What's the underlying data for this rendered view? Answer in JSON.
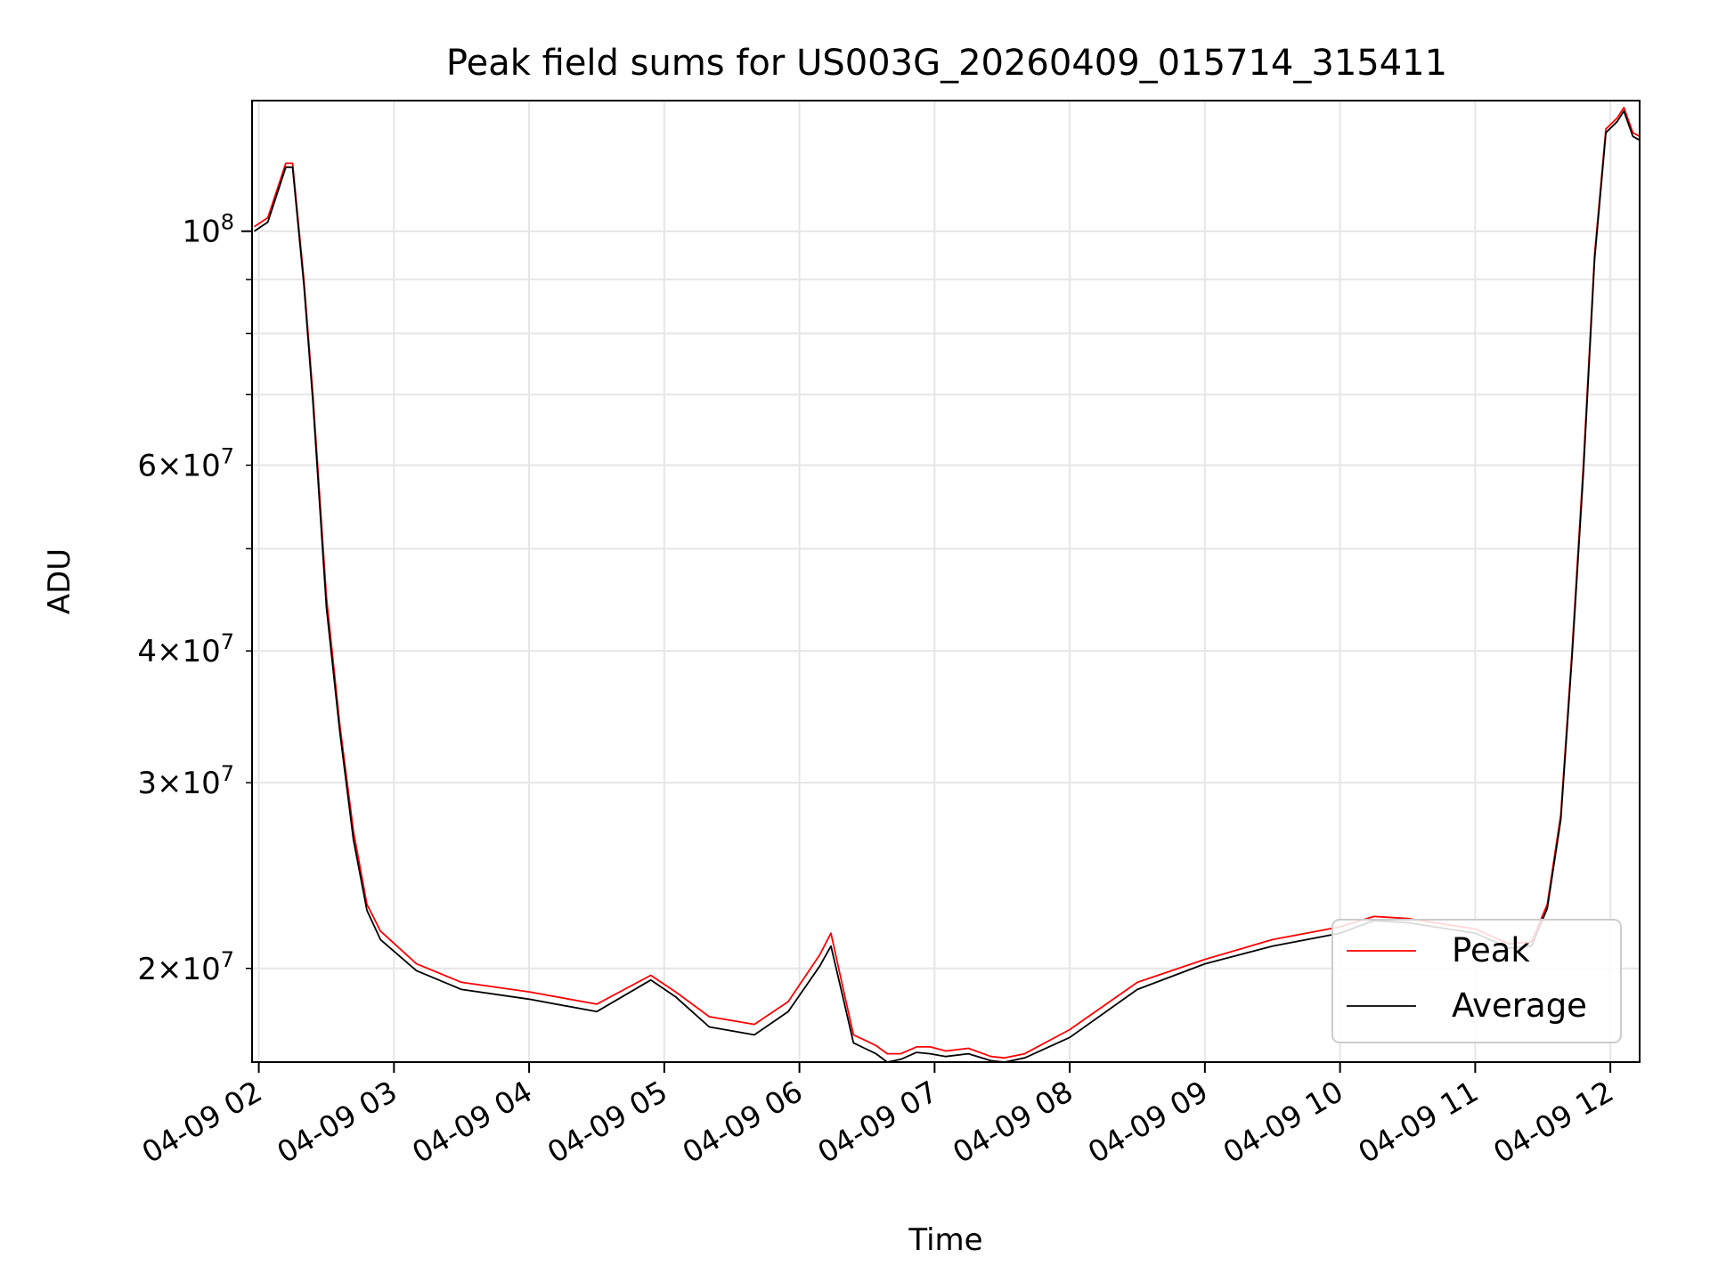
{
  "chart_data": {
    "type": "line",
    "title": "Peak field sums for US003G_20260409_015714_315411",
    "xlabel": "Time",
    "ylabel": "ADU",
    "x_tick_labels": [
      "04-09 02",
      "04-09 03",
      "04-09 04",
      "04-09 05",
      "04-09 06",
      "04-09 07",
      "04-09 08",
      "04-09 09",
      "04-09 10",
      "04-09 11",
      "04-09 12"
    ],
    "y_tick_labels": [
      {
        "value": 20000000,
        "mant": "2",
        "exp": "7"
      },
      {
        "value": 30000000,
        "mant": "3",
        "exp": "7"
      },
      {
        "value": 40000000,
        "mant": "4",
        "exp": "7"
      },
      {
        "value": 60000000,
        "mant": "6",
        "exp": "7"
      },
      {
        "value": 100000000,
        "mant": "",
        "exp": "8"
      }
    ],
    "y_scale": "log",
    "xlim": [
      "2026-04-09 01:57",
      "2026-04-09 12:13"
    ],
    "ylim": [
      16300000,
      133000000
    ],
    "grid": true,
    "legend_position": "lower right",
    "series": [
      {
        "name": "Peak",
        "color": "#ff0000",
        "x": [
          "2026-04-09 01:58",
          "2026-04-09 02:04",
          "2026-04-09 02:12",
          "2026-04-09 02:15",
          "2026-04-09 02:20",
          "2026-04-09 02:24",
          "2026-04-09 02:30",
          "2026-04-09 02:36",
          "2026-04-09 02:42",
          "2026-04-09 02:48",
          "2026-04-09 02:54",
          "2026-04-09 03:10",
          "2026-04-09 03:30",
          "2026-04-09 04:00",
          "2026-04-09 04:30",
          "2026-04-09 04:54",
          "2026-04-09 05:05",
          "2026-04-09 05:20",
          "2026-04-09 05:40",
          "2026-04-09 05:55",
          "2026-04-09 06:09",
          "2026-04-09 06:14",
          "2026-04-09 06:19",
          "2026-04-09 06:24",
          "2026-04-09 06:29",
          "2026-04-09 06:34",
          "2026-04-09 06:39",
          "2026-04-09 06:45",
          "2026-04-09 06:52",
          "2026-04-09 06:58",
          "2026-04-09 07:05",
          "2026-04-09 07:15",
          "2026-04-09 07:25",
          "2026-04-09 07:31",
          "2026-04-09 07:40",
          "2026-04-09 08:00",
          "2026-04-09 08:30",
          "2026-04-09 09:00",
          "2026-04-09 09:30",
          "2026-04-09 10:00",
          "2026-04-09 10:15",
          "2026-04-09 10:30",
          "2026-04-09 11:00",
          "2026-04-09 11:15",
          "2026-04-09 11:25",
          "2026-04-09 11:32",
          "2026-04-09 11:38",
          "2026-04-09 11:43",
          "2026-04-09 11:48",
          "2026-04-09 11:53",
          "2026-04-09 11:58",
          "2026-04-09 12:03",
          "2026-04-09 12:06",
          "2026-04-09 12:10",
          "2026-04-09 12:13"
        ],
        "y": [
          101000000,
          103000000,
          116000000,
          116000000,
          90000000,
          70000000,
          45000000,
          34000000,
          27000000,
          23000000,
          21700000,
          20200000,
          19400000,
          19000000,
          18500000,
          19700000,
          19000000,
          18000000,
          17700000,
          18600000,
          20600000,
          21600000,
          19300000,
          17300000,
          17100000,
          16900000,
          16600000,
          16600000,
          16850000,
          16850000,
          16700000,
          16800000,
          16500000,
          16450000,
          16600000,
          17500000,
          19400000,
          20400000,
          21300000,
          21900000,
          22400000,
          22300000,
          21800000,
          21100000,
          21200000,
          23000000,
          28000000,
          40000000,
          60000000,
          95000000,
          125000000,
          128000000,
          131000000,
          124000000,
          123000000
        ]
      },
      {
        "name": "Average",
        "color": "#000000",
        "x": [
          "2026-04-09 01:58",
          "2026-04-09 02:04",
          "2026-04-09 02:12",
          "2026-04-09 02:15",
          "2026-04-09 02:20",
          "2026-04-09 02:24",
          "2026-04-09 02:30",
          "2026-04-09 02:36",
          "2026-04-09 02:42",
          "2026-04-09 02:48",
          "2026-04-09 02:54",
          "2026-04-09 03:10",
          "2026-04-09 03:30",
          "2026-04-09 04:00",
          "2026-04-09 04:30",
          "2026-04-09 04:54",
          "2026-04-09 05:05",
          "2026-04-09 05:20",
          "2026-04-09 05:40",
          "2026-04-09 05:55",
          "2026-04-09 06:09",
          "2026-04-09 06:14",
          "2026-04-09 06:19",
          "2026-04-09 06:24",
          "2026-04-09 06:29",
          "2026-04-09 06:34",
          "2026-04-09 06:39",
          "2026-04-09 06:45",
          "2026-04-09 06:52",
          "2026-04-09 06:58",
          "2026-04-09 07:05",
          "2026-04-09 07:15",
          "2026-04-09 07:25",
          "2026-04-09 07:31",
          "2026-04-09 07:40",
          "2026-04-09 08:00",
          "2026-04-09 08:30",
          "2026-04-09 09:00",
          "2026-04-09 09:30",
          "2026-04-09 10:00",
          "2026-04-09 10:15",
          "2026-04-09 10:30",
          "2026-04-09 11:00",
          "2026-04-09 11:15",
          "2026-04-09 11:25",
          "2026-04-09 11:32",
          "2026-04-09 11:38",
          "2026-04-09 11:43",
          "2026-04-09 11:48",
          "2026-04-09 11:53",
          "2026-04-09 11:58",
          "2026-04-09 12:03",
          "2026-04-09 12:06",
          "2026-04-09 12:10",
          "2026-04-09 12:13"
        ],
        "y": [
          100000000,
          102000000,
          115000000,
          115000000,
          89000000,
          69000000,
          44000000,
          33500000,
          26500000,
          22700000,
          21300000,
          19900000,
          19100000,
          18700000,
          18200000,
          19500000,
          18800000,
          17600000,
          17300000,
          18200000,
          20100000,
          21000000,
          18900000,
          17000000,
          16800000,
          16600000,
          16300000,
          16400000,
          16650000,
          16600000,
          16500000,
          16600000,
          16350000,
          16300000,
          16450000,
          17200000,
          19100000,
          20200000,
          21000000,
          21600000,
          22200000,
          22100000,
          21600000,
          20900000,
          21000000,
          22800000,
          27700000,
          39500000,
          59000000,
          94000000,
          124000000,
          127000000,
          130000000,
          123000000,
          122000000
        ]
      }
    ]
  }
}
